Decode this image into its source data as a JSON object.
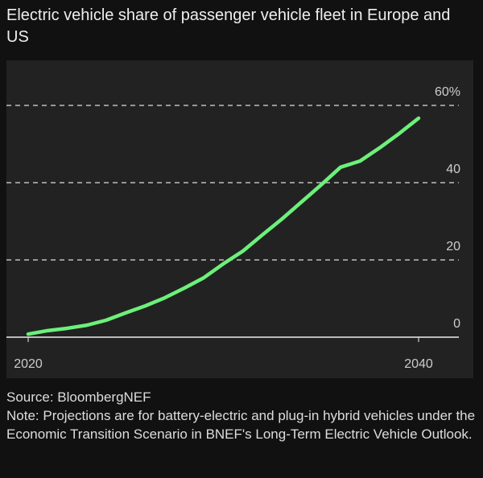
{
  "chart_data": {
    "type": "line",
    "title": "Electric vehicle share of passenger vehicle fleet in Europe and US",
    "x": [
      2020,
      2021,
      2022,
      2023,
      2024,
      2025,
      2026,
      2027,
      2028,
      2029,
      2030,
      2031,
      2032,
      2033,
      2034,
      2035,
      2036,
      2037,
      2038,
      2039,
      2040
    ],
    "series": [
      {
        "name": "EV share",
        "color": "#6cf07a",
        "values": [
          0.8,
          1.7,
          2.3,
          3.1,
          4.4,
          6.3,
          8.1,
          10.2,
          12.7,
          15.4,
          19,
          22.3,
          26.5,
          30.6,
          35,
          39.4,
          44,
          45.6,
          49,
          52.7,
          56.7
        ]
      }
    ],
    "xlim": [
      2019,
      2042
    ],
    "xticks": [
      2020,
      2040
    ],
    "ylim": [
      0,
      60
    ],
    "yticks": [
      0,
      20,
      40,
      {
        "value": 60,
        "label": "60%"
      }
    ],
    "grid": true,
    "source": "Source: BloombergNEF",
    "note": "Note: Projections are for battery-electric and plug-in hybrid vehicles under the Economic Transition Scenario in BNEF's Long-Term Electric Vehicle Outlook."
  }
}
